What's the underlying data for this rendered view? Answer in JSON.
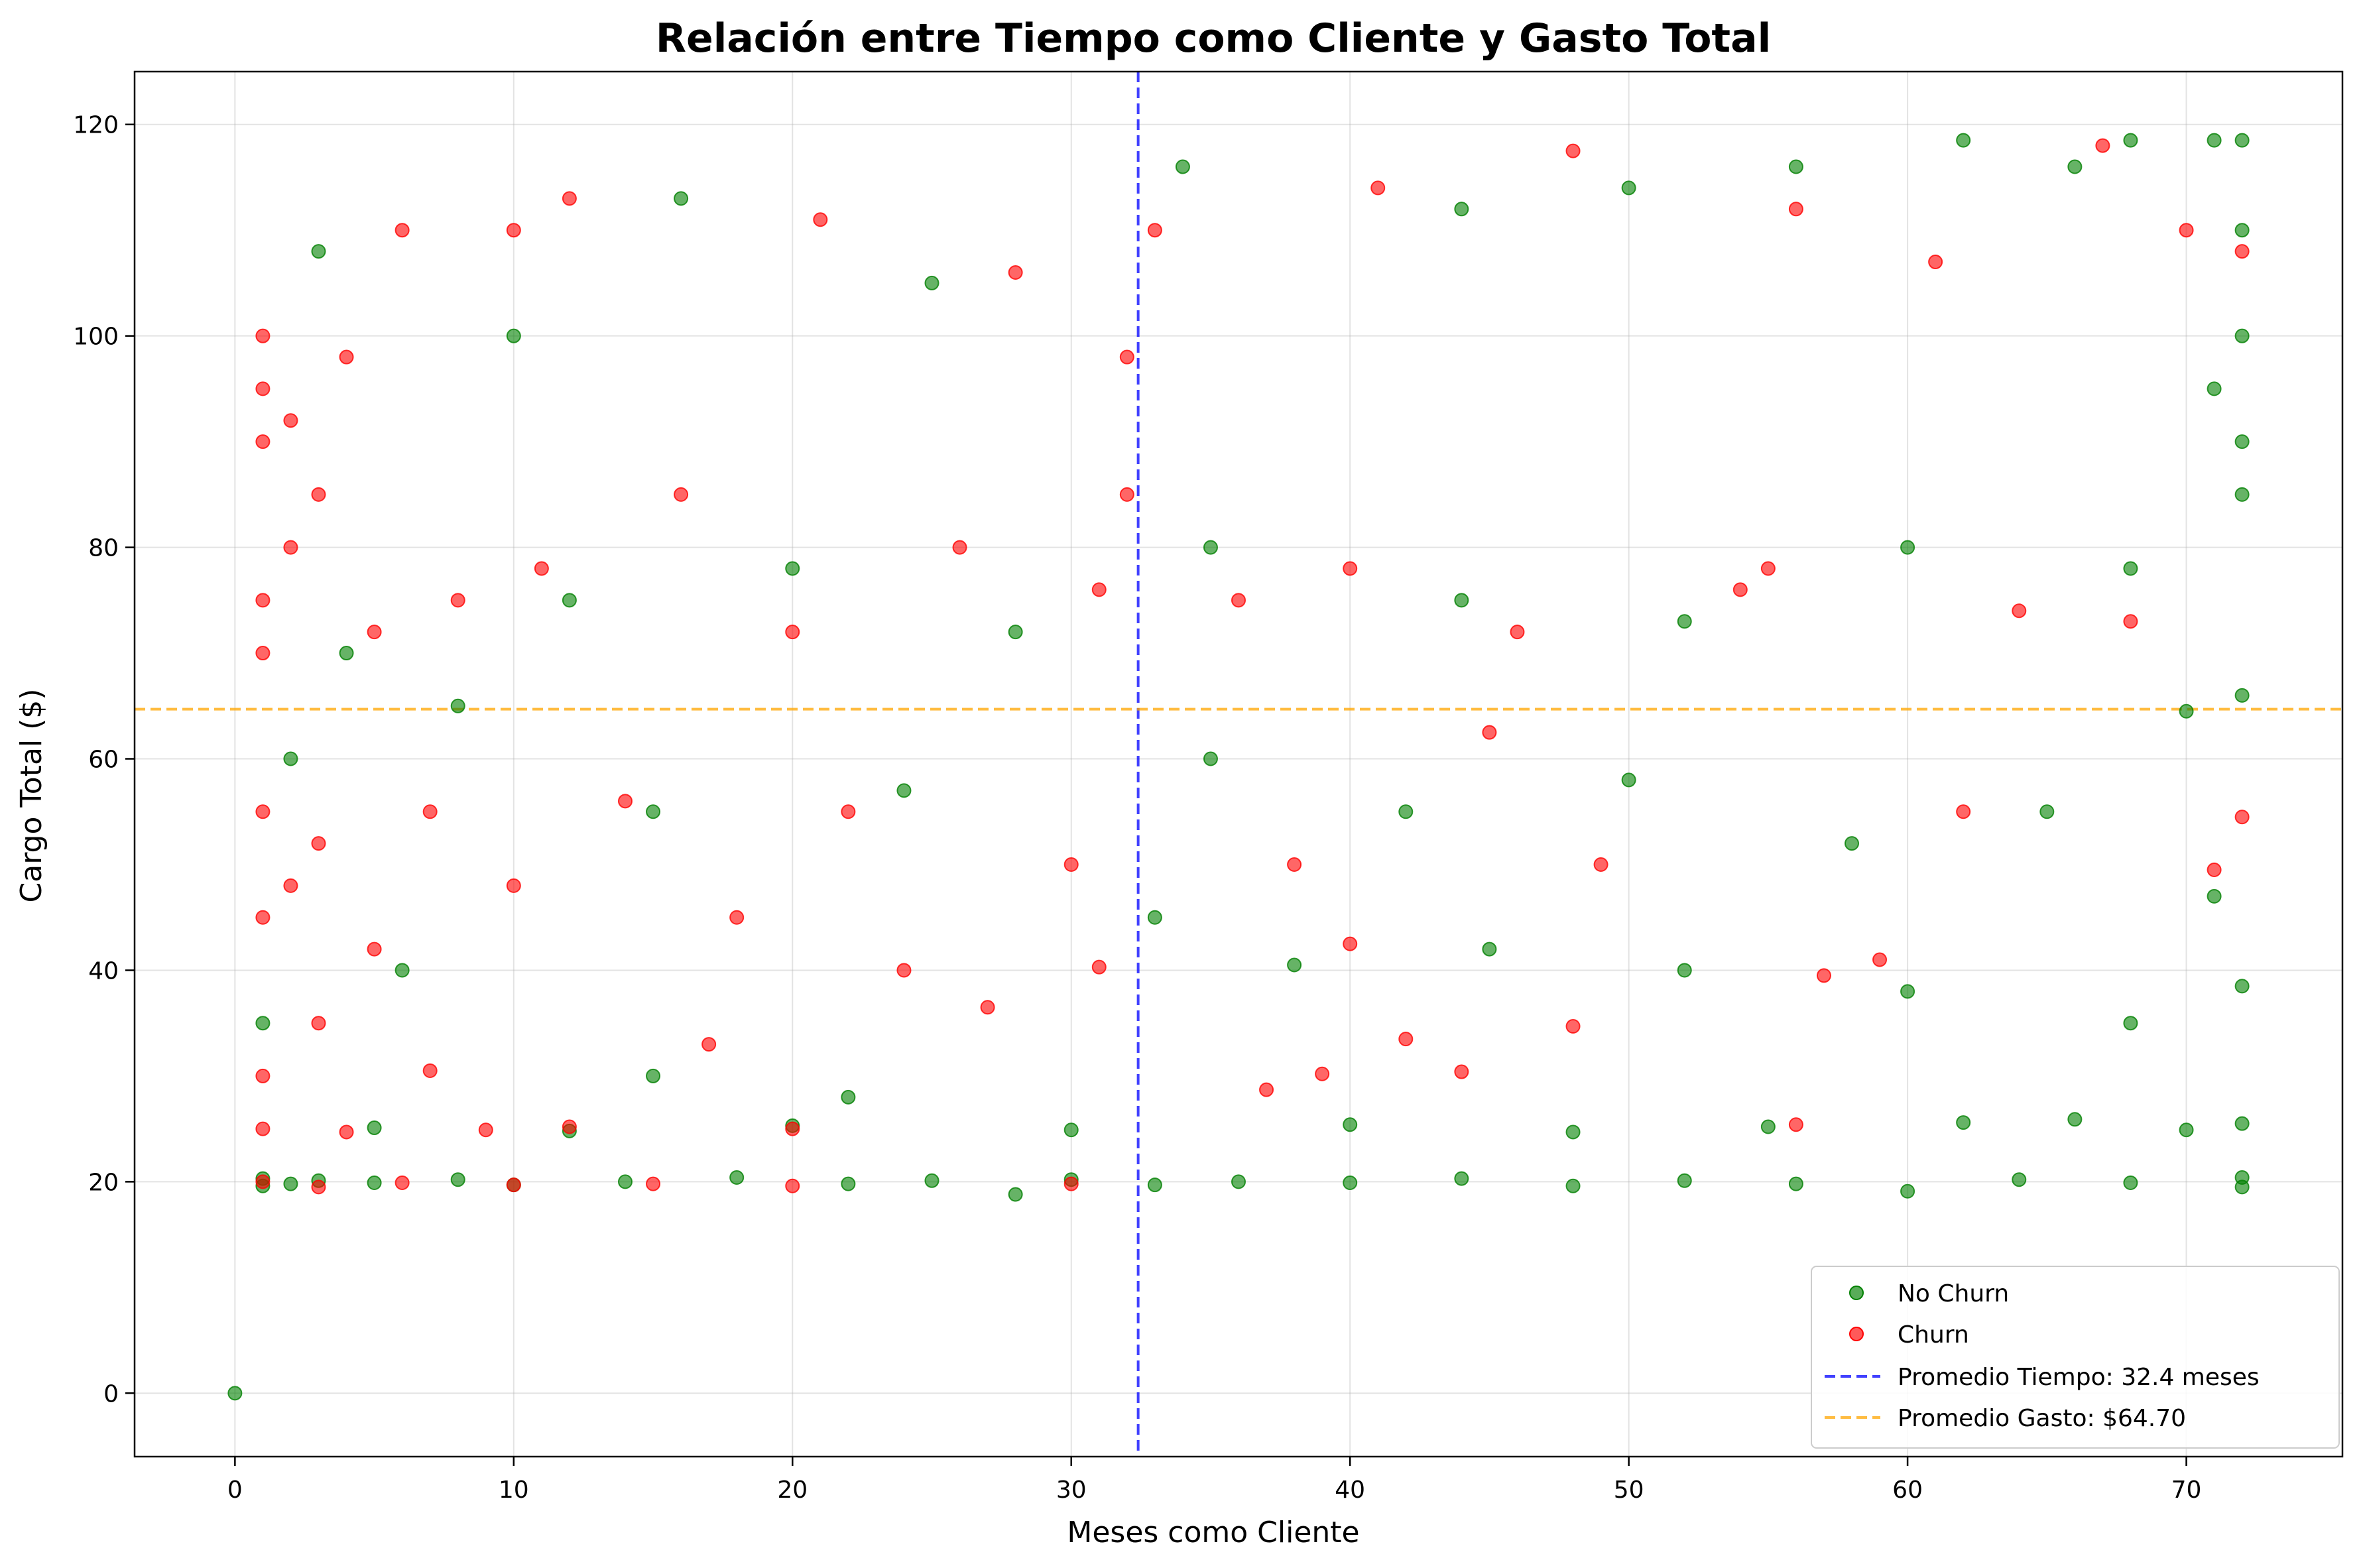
{
  "chart_data": {
    "type": "scatter",
    "title": "Relación entre Tiempo como Cliente y Gasto Total",
    "xlabel": "Meses como Cliente",
    "ylabel": "Cargo Total ($)",
    "xlim": [
      -3.6,
      75.6
    ],
    "ylim": [
      -6,
      125
    ],
    "x_ticks": [
      0,
      10,
      20,
      30,
      40,
      50,
      60,
      70
    ],
    "y_ticks": [
      0,
      20,
      40,
      60,
      80,
      100,
      120
    ],
    "grid": true,
    "legend_position": "bottom-right",
    "series": [
      {
        "name": "No Churn",
        "color": "#008000",
        "points": [
          [
            0,
            0
          ],
          [
            1,
            19.6
          ],
          [
            1,
            20.3
          ],
          [
            2,
            19.8
          ],
          [
            3,
            20.1
          ],
          [
            5,
            19.9
          ],
          [
            8,
            20.2
          ],
          [
            10,
            19.7
          ],
          [
            14,
            20.0
          ],
          [
            18,
            20.4
          ],
          [
            22,
            19.8
          ],
          [
            25,
            20.1
          ],
          [
            28,
            18.8
          ],
          [
            30,
            20.2
          ],
          [
            33,
            19.7
          ],
          [
            36,
            20.0
          ],
          [
            40,
            19.9
          ],
          [
            44,
            20.3
          ],
          [
            48,
            19.6
          ],
          [
            52,
            20.1
          ],
          [
            56,
            19.8
          ],
          [
            60,
            19.1
          ],
          [
            64,
            20.2
          ],
          [
            68,
            19.9
          ],
          [
            72,
            20.4
          ],
          [
            72,
            19.5
          ],
          [
            5,
            25.1
          ],
          [
            12,
            24.8
          ],
          [
            20,
            25.3
          ],
          [
            30,
            24.9
          ],
          [
            40,
            25.4
          ],
          [
            48,
            24.7
          ],
          [
            55,
            25.2
          ],
          [
            62,
            25.6
          ],
          [
            66,
            25.9
          ],
          [
            70,
            24.9
          ],
          [
            72,
            25.5
          ],
          [
            1,
            35.0
          ],
          [
            6,
            40.0
          ],
          [
            15,
            30.0
          ],
          [
            22,
            28.0
          ],
          [
            33,
            45.0
          ],
          [
            38,
            40.5
          ],
          [
            45,
            42.0
          ],
          [
            52,
            40.0
          ],
          [
            60,
            38.0
          ],
          [
            68,
            35.0
          ],
          [
            72,
            38.5
          ],
          [
            71,
            47.0
          ],
          [
            2,
            60.0
          ],
          [
            8,
            65.0
          ],
          [
            15,
            55.0
          ],
          [
            24,
            57.0
          ],
          [
            35,
            60.0
          ],
          [
            42,
            55.0
          ],
          [
            50,
            58.0
          ],
          [
            58,
            52.0
          ],
          [
            65,
            55.0
          ],
          [
            72,
            66.0
          ],
          [
            70,
            64.5
          ],
          [
            4,
            70.0
          ],
          [
            12,
            75.0
          ],
          [
            20,
            78.0
          ],
          [
            28,
            72.0
          ],
          [
            35,
            80.0
          ],
          [
            44,
            75.0
          ],
          [
            52,
            73.0
          ],
          [
            60,
            80.0
          ],
          [
            68,
            78.0
          ],
          [
            72,
            85.0
          ],
          [
            72,
            90.0
          ],
          [
            3,
            108.0
          ],
          [
            10,
            100.0
          ],
          [
            16,
            113.0
          ],
          [
            25,
            105.0
          ],
          [
            34,
            116.0
          ],
          [
            44,
            112.0
          ],
          [
            50,
            114.0
          ],
          [
            56,
            116.0
          ],
          [
            62,
            118.5
          ],
          [
            66,
            116.0
          ],
          [
            68,
            118.5
          ],
          [
            71,
            118.5
          ],
          [
            72,
            118.5
          ],
          [
            72,
            110.0
          ],
          [
            72,
            100.0
          ],
          [
            71,
            95.0
          ]
        ]
      },
      {
        "name": "Churn",
        "color": "#ff0000",
        "points": [
          [
            1,
            20.0
          ],
          [
            3,
            19.5
          ],
          [
            6,
            19.9
          ],
          [
            10,
            19.7
          ],
          [
            15,
            19.8
          ],
          [
            20,
            19.6
          ],
          [
            30,
            19.8
          ],
          [
            1,
            25.0
          ],
          [
            4,
            24.7
          ],
          [
            9,
            24.9
          ],
          [
            12,
            25.2
          ],
          [
            20,
            25.0
          ],
          [
            56,
            25.4
          ],
          [
            1,
            30.0
          ],
          [
            3,
            35.0
          ],
          [
            7,
            30.5
          ],
          [
            17,
            33.0
          ],
          [
            27,
            36.5
          ],
          [
            31,
            40.3
          ],
          [
            37,
            28.7
          ],
          [
            39,
            30.2
          ],
          [
            44,
            30.4
          ],
          [
            48,
            34.7
          ],
          [
            1,
            45.0
          ],
          [
            2,
            48.0
          ],
          [
            5,
            42.0
          ],
          [
            10,
            48.0
          ],
          [
            18,
            45.0
          ],
          [
            24,
            40.0
          ],
          [
            42,
            33.5
          ],
          [
            40,
            42.5
          ],
          [
            57,
            39.5
          ],
          [
            59,
            41.0
          ],
          [
            71,
            49.5
          ],
          [
            1,
            55.0
          ],
          [
            3,
            52.0
          ],
          [
            7,
            55.0
          ],
          [
            14,
            56.0
          ],
          [
            22,
            55.0
          ],
          [
            30,
            50.0
          ],
          [
            38,
            50.0
          ],
          [
            45,
            62.5
          ],
          [
            49,
            50.0
          ],
          [
            62,
            55.0
          ],
          [
            72,
            54.5
          ],
          [
            1,
            70.0
          ],
          [
            1,
            75.0
          ],
          [
            2,
            80.0
          ],
          [
            3,
            85.0
          ],
          [
            5,
            72.0
          ],
          [
            8,
            75.0
          ],
          [
            11,
            78.0
          ],
          [
            16,
            85.0
          ],
          [
            20,
            72.0
          ],
          [
            26,
            80.0
          ],
          [
            31,
            76.0
          ],
          [
            32,
            85.0
          ],
          [
            36,
            75.0
          ],
          [
            40,
            78.0
          ],
          [
            46,
            72.0
          ],
          [
            54,
            76.0
          ],
          [
            55,
            78.0
          ],
          [
            64,
            74.0
          ],
          [
            68,
            73.0
          ],
          [
            1,
            90.0
          ],
          [
            1,
            95.0
          ],
          [
            1,
            100.0
          ],
          [
            2,
            92.0
          ],
          [
            4,
            98.0
          ],
          [
            6,
            110.0
          ],
          [
            10,
            110.0
          ],
          [
            12,
            113.0
          ],
          [
            21,
            111.0
          ],
          [
            28,
            106.0
          ],
          [
            32,
            98.0
          ],
          [
            33,
            110.0
          ],
          [
            41,
            114.0
          ],
          [
            48,
            117.5
          ],
          [
            56,
            112.0
          ],
          [
            61,
            107.0
          ],
          [
            67,
            118.0
          ],
          [
            70,
            110.0
          ],
          [
            72,
            108.0
          ]
        ]
      }
    ],
    "reference_lines": [
      {
        "orientation": "vertical",
        "value": 32.4,
        "color": "#0000ff",
        "label": "Promedio Tiempo: 32.4 meses"
      },
      {
        "orientation": "horizontal",
        "value": 64.7,
        "color": "#ffa500",
        "label": "Promedio Gasto: $64.70"
      }
    ]
  }
}
